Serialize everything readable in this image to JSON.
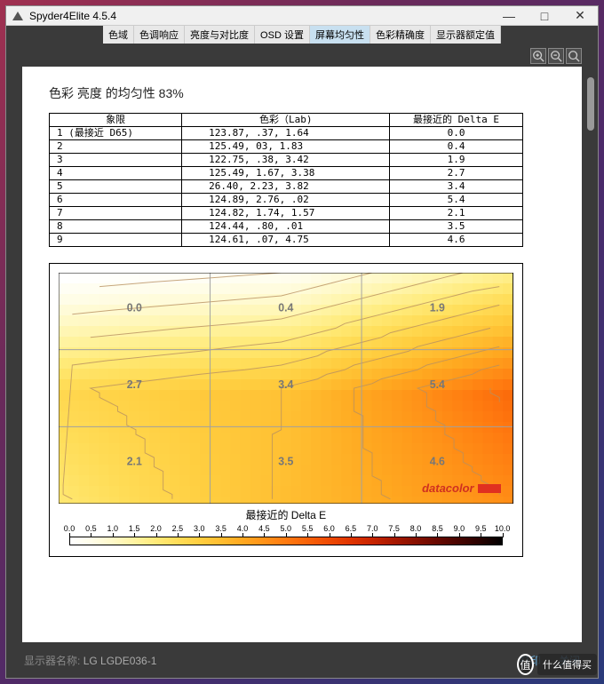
{
  "window": {
    "title": "Spyder4Elite 4.5.4",
    "buttons": {
      "min": "—",
      "max": "□",
      "close": "✕"
    }
  },
  "tabs": {
    "items": [
      "色域",
      "色调响应",
      "亮度与对比度",
      "OSD 设置",
      "屏幕均匀性",
      "色彩精确度",
      "显示器额定值"
    ],
    "active_index": 4
  },
  "heading": "色彩 亮度  的均匀性  83%",
  "table": {
    "headers": [
      "象限",
      "色彩（Lab)",
      "最接近的 Delta E"
    ],
    "rows": [
      {
        "label": "1 (最接近 D65)",
        "lab": "123.87,   .37,   1.64",
        "de": "0.0"
      },
      {
        "label": "2",
        "lab": "125.49,    03,   1.83",
        "de": "0.4"
      },
      {
        "label": "3",
        "lab": "122.75,   .38,   3.42",
        "de": "1.9"
      },
      {
        "label": "4",
        "lab": "125.49,  1.67,   3.38",
        "de": "2.7"
      },
      {
        "label": "5",
        "lab": " 26.40,  2.23,   3.82",
        "de": "3.4"
      },
      {
        "label": "6",
        "lab": "124.89,  2.76,    .02",
        "de": "5.4"
      },
      {
        "label": "7",
        "lab": "124.82,  1.74,   1.57",
        "de": "2.1"
      },
      {
        "label": "8",
        "lab": "124.44,   .80,    .01",
        "de": "3.5"
      },
      {
        "label": "9",
        "lab": "124.61,   .07,   4.75",
        "de": "4.6"
      }
    ]
  },
  "chart": {
    "type": "contour-heatmap",
    "title": "最接近的 Delta E",
    "grid_values": [
      [
        0.0,
        0.4,
        1.9
      ],
      [
        2.7,
        3.4,
        5.4
      ],
      [
        2.1,
        3.5,
        4.6
      ]
    ],
    "legend": {
      "min": 0.0,
      "max": 10.0,
      "step": 0.5
    },
    "colorscale": [
      {
        "v": 0.0,
        "c": "#ffffff"
      },
      {
        "v": 0.5,
        "c": "#fffde8"
      },
      {
        "v": 1.0,
        "c": "#fff9c8"
      },
      {
        "v": 1.5,
        "c": "#fff3a0"
      },
      {
        "v": 2.0,
        "c": "#ffea78"
      },
      {
        "v": 2.5,
        "c": "#ffdd58"
      },
      {
        "v": 3.0,
        "c": "#ffce40"
      },
      {
        "v": 3.5,
        "c": "#ffbd30"
      },
      {
        "v": 4.0,
        "c": "#ffa820"
      },
      {
        "v": 4.5,
        "c": "#ff9218"
      },
      {
        "v": 5.0,
        "c": "#ff7a10"
      },
      {
        "v": 5.5,
        "c": "#f86208"
      },
      {
        "v": 6.0,
        "c": "#ee4a04"
      },
      {
        "v": 6.5,
        "c": "#e03400"
      },
      {
        "v": 7.0,
        "c": "#c82400"
      },
      {
        "v": 7.5,
        "c": "#a81800"
      },
      {
        "v": 8.0,
        "c": "#881000"
      },
      {
        "v": 8.5,
        "c": "#680800"
      },
      {
        "v": 9.0,
        "c": "#480400"
      },
      {
        "v": 9.5,
        "c": "#280200"
      },
      {
        "v": 10.0,
        "c": "#000000"
      }
    ],
    "brand": "datacolor",
    "contour_color": "#b89060",
    "grid_color": "#a0a0a0",
    "label_color": "#777777",
    "label_fontsize": 13
  },
  "status": {
    "label": "显示器名称:",
    "value": "LG LGDE036-1",
    "print": "打印",
    "close": "关闭"
  }
}
